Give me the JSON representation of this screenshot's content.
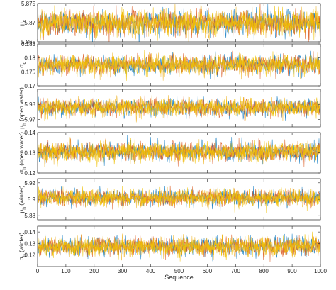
{
  "chart_data": [
    {
      "type": "line",
      "ylabel": "μ c",
      "ylabel_main": "μ",
      "ylabel_sub": "c",
      "ylim": [
        5.865,
        5.875
      ],
      "yticks": [
        5.865,
        5.87,
        5.875
      ],
      "ytick_labels": [
        "5.865",
        "5.87",
        "5.875"
      ],
      "mean": 5.87,
      "spread": 0.0019,
      "xlim": [
        0,
        1000
      ],
      "series": [
        {
          "values_note": ""
        },
        {},
        {},
        {}
      ],
      "grid": false
    },
    {
      "type": "line",
      "ylabel": "σ c",
      "ylabel_main": "σ",
      "ylabel_sub": "c",
      "ylim": [
        0.17,
        0.185
      ],
      "yticks": [
        0.17,
        0.175,
        0.18,
        0.185
      ],
      "ytick_labels": [
        "0.17",
        "0.175",
        "0.18",
        "0.185"
      ],
      "mean": 0.1775,
      "spread": 0.0019,
      "xlim": [
        0,
        1000
      ],
      "grid": false
    },
    {
      "type": "line",
      "ylabel": "μ h (open water)",
      "ylabel_main": "μ",
      "ylabel_sub": "h",
      "ylabel_suffix": " (open water)",
      "ylim": [
        5.965,
        5.99
      ],
      "yticks": [
        5.97,
        5.98
      ],
      "ytick_labels": [
        "5.97",
        "5.98"
      ],
      "mean": 5.978,
      "spread": 0.0032,
      "xlim": [
        0,
        1000
      ],
      "grid": false
    },
    {
      "type": "line",
      "ylabel": "σ h (open water)",
      "ylabel_main": "σ",
      "ylabel_sub": "h",
      "ylabel_suffix": " (open water)",
      "ylim": [
        0.12,
        0.14
      ],
      "yticks": [
        0.12,
        0.13,
        0.14
      ],
      "ytick_labels": [
        "0.12",
        "0.13",
        "0.14"
      ],
      "mean": 0.1305,
      "spread": 0.0026,
      "xlim": [
        0,
        1000
      ],
      "grid": false
    },
    {
      "type": "line",
      "ylabel": "μ h (winter)",
      "ylabel_main": "μ",
      "ylabel_sub": "h",
      "ylabel_suffix": " (winter)",
      "ylim": [
        5.875,
        5.925
      ],
      "yticks": [
        5.88,
        5.9,
        5.92
      ],
      "ytick_labels": [
        "5.88",
        "5.9",
        "5.92"
      ],
      "mean": 5.902,
      "spread": 0.0055,
      "xlim": [
        0,
        1000
      ],
      "grid": false
    },
    {
      "type": "line",
      "ylabel": "σ h (winter)",
      "ylabel_main": "σ",
      "ylabel_sub": "h",
      "ylabel_suffix": " (winter)",
      "ylim": [
        0.11,
        0.145
      ],
      "yticks": [
        0.12,
        0.13,
        0.14
      ],
      "ytick_labels": [
        "0.12",
        "0.13",
        "0.14"
      ],
      "mean": 0.1275,
      "spread": 0.0045,
      "xlim": [
        0,
        1000
      ],
      "grid": false
    }
  ],
  "x_axis": {
    "label": "Sequence",
    "ticks": [
      0,
      100,
      200,
      300,
      400,
      500,
      600,
      700,
      800,
      900,
      1000
    ],
    "tick_labels": [
      "0",
      "100",
      "200",
      "300",
      "400",
      "500",
      "600",
      "700",
      "800",
      "900",
      "1000"
    ]
  },
  "series_colors": [
    "#0072BD",
    "#D95319",
    "#EDB120",
    "#F0C000"
  ],
  "samples_per_chain": 1000
}
